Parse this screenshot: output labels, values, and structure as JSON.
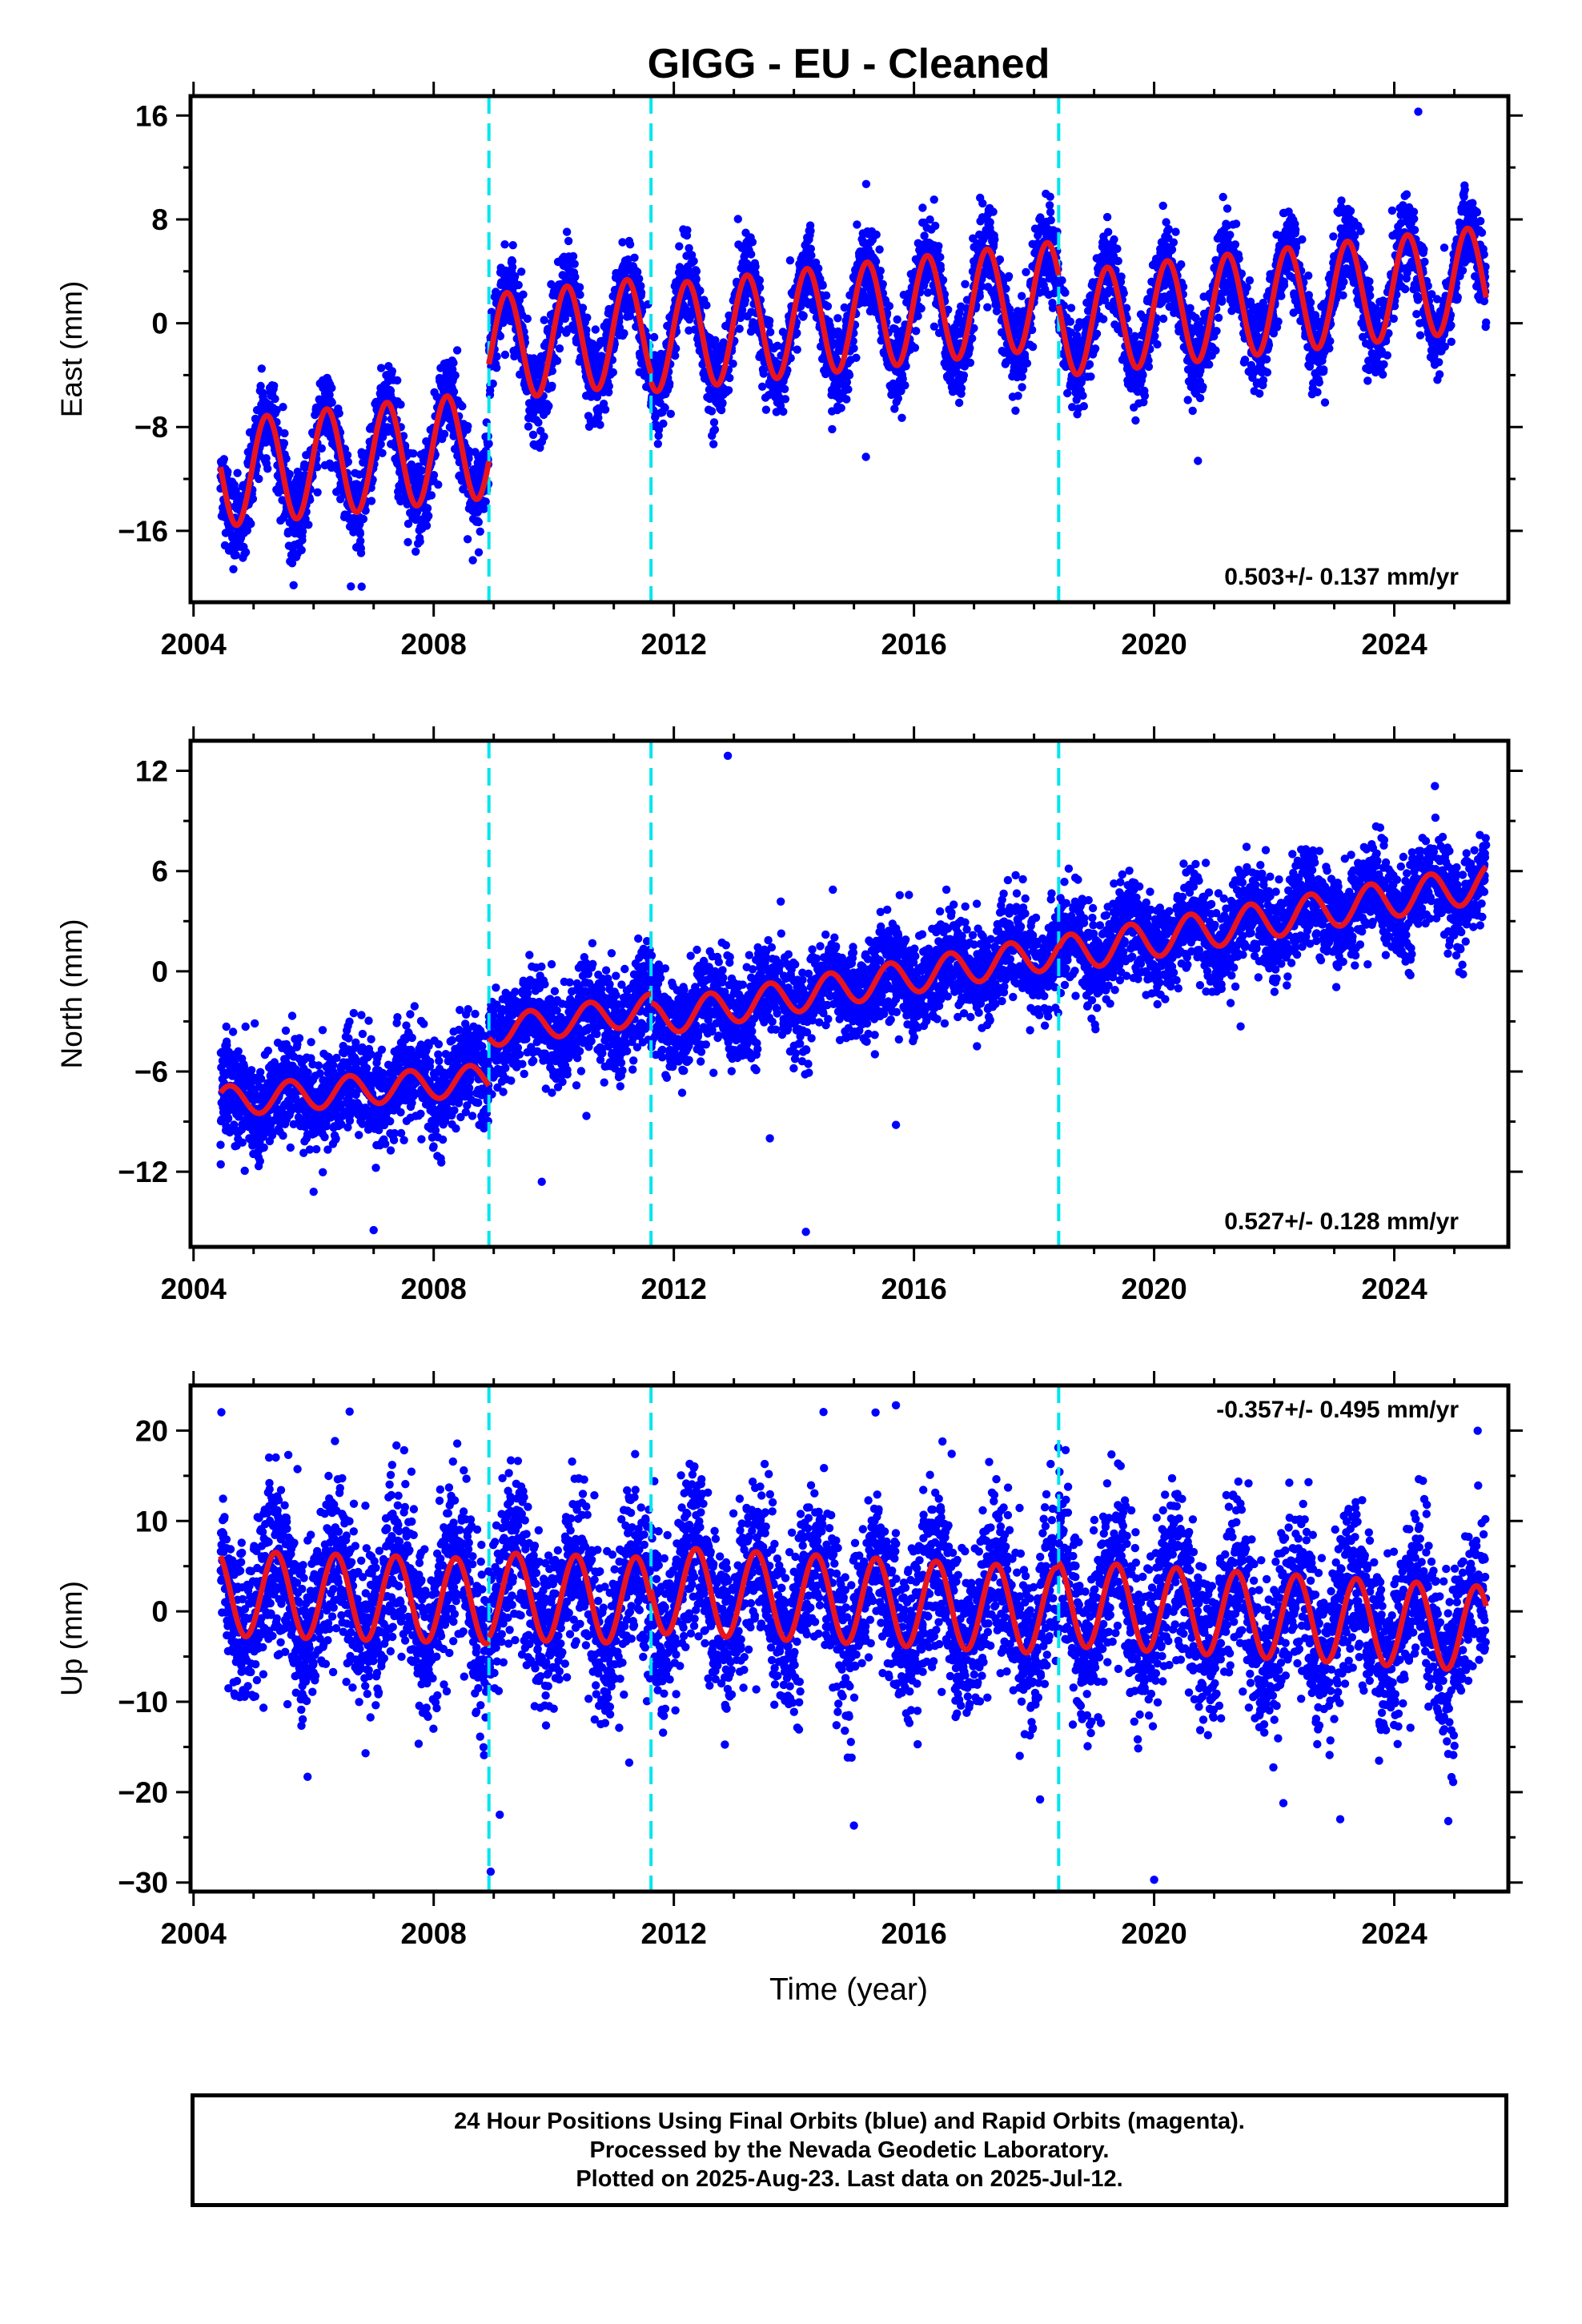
{
  "figure": {
    "title": "GIGG  - EU - Cleaned",
    "x_axis_label": "Time (year)",
    "footer_lines": [
      "24 Hour Positions Using Final Orbits (blue) and Rapid Orbits (magenta).",
      "Processed by the Nevada Geodetic Laboratory.",
      "Plotted on 2025-Aug-23. Last data on 2025-Jul-12."
    ]
  },
  "colors": {
    "points": "#0000ff",
    "model": "#e8141e",
    "breaks": "#00e5ee",
    "frame": "#000000"
  },
  "chart_data": [
    {
      "type": "scatter",
      "name": "east",
      "ylabel": "East (mm)",
      "xlim": [
        2003.95,
        2025.9
      ],
      "ylim": [
        -21.5,
        17.5
      ],
      "x_ticks": [
        2004,
        2008,
        2012,
        2016,
        2020,
        2024
      ],
      "y_ticks": [
        -16,
        -8,
        0,
        8,
        16
      ],
      "rate_label": "0.503+/- 0.137 mm/yr",
      "rate_position": "bottom-right",
      "break_epochs": [
        2008.92,
        2011.62,
        2018.41
      ],
      "model_segments": [
        {
          "x_start": 2004.45,
          "x_end": 2008.92,
          "intercept_mm": -11.6,
          "slope_mm_per_yr": 0.5,
          "annual_amplitude_mm": 4.1,
          "annual_phase_yr": 0.22
        },
        {
          "x_start": 2008.92,
          "x_end": 2011.62,
          "intercept_mm": -1.9,
          "slope_mm_per_yr": 0.5,
          "annual_amplitude_mm": 4.1,
          "annual_phase_yr": 0.22
        },
        {
          "x_start": 2011.62,
          "x_end": 2018.41,
          "intercept_mm": -1.2,
          "slope_mm_per_yr": 0.5,
          "annual_amplitude_mm": 4.1,
          "annual_phase_yr": 0.22
        },
        {
          "x_start": 2018.41,
          "x_end": 2025.53,
          "intercept_mm": -0.1,
          "slope_mm_per_yr": 0.5,
          "annual_amplitude_mm": 4.0,
          "annual_phase_yr": 0.22
        }
      ],
      "scatter_noise_mm": 1.6,
      "outliers": [
        [
          2006.8,
          -20.3
        ],
        [
          2024.4,
          16.3
        ],
        [
          2007.7,
          -17.6
        ],
        [
          2015.2,
          -10.3
        ]
      ]
    },
    {
      "type": "scatter",
      "name": "north",
      "ylabel": "North (mm)",
      "xlim": [
        2003.95,
        2025.9
      ],
      "ylim": [
        -16.5,
        13.8
      ],
      "x_ticks": [
        2004,
        2008,
        2012,
        2016,
        2020,
        2024
      ],
      "y_ticks": [
        -12,
        -6,
        0,
        6,
        12
      ],
      "rate_label": "0.527+/- 0.128 mm/yr",
      "rate_position": "bottom-right",
      "break_epochs": [
        2008.92,
        2011.62,
        2018.41
      ],
      "model_segments": [
        {
          "x_start": 2004.45,
          "x_end": 2008.92,
          "intercept_mm": -7.8,
          "slope_mm_per_yr": 0.3,
          "annual_amplitude_mm": 0.9,
          "annual_phase_yr": 0.6
        },
        {
          "x_start": 2008.92,
          "x_end": 2011.62,
          "intercept_mm": -3.6,
          "slope_mm_per_yr": 0.5,
          "annual_amplitude_mm": 0.9,
          "annual_phase_yr": 0.6
        },
        {
          "x_start": 2011.62,
          "x_end": 2018.41,
          "intercept_mm": -2.9,
          "slope_mm_per_yr": 0.6,
          "annual_amplitude_mm": 1.0,
          "annual_phase_yr": 0.6
        },
        {
          "x_start": 2018.41,
          "x_end": 2025.53,
          "intercept_mm": 1.0,
          "slope_mm_per_yr": 0.6,
          "annual_amplitude_mm": 1.1,
          "annual_phase_yr": 0.6
        }
      ],
      "scatter_noise_mm": 1.4,
      "outliers": [
        [
          2012.9,
          12.9
        ],
        [
          2006.0,
          -13.2
        ],
        [
          2007.0,
          -15.5
        ],
        [
          2014.2,
          -15.6
        ],
        [
          2013.6,
          -10.0
        ],
        [
          2015.7,
          -9.2
        ],
        [
          2009.8,
          -12.6
        ]
      ]
    },
    {
      "type": "scatter",
      "name": "up",
      "ylabel": "Up (mm)",
      "xlim": [
        2003.95,
        2025.9
      ],
      "ylim": [
        -31,
        25
      ],
      "x_ticks": [
        2004,
        2008,
        2012,
        2016,
        2020,
        2024
      ],
      "y_ticks": [
        -30,
        -20,
        -10,
        0,
        10,
        20
      ],
      "rate_label": "-0.357+/- 0.495 mm/yr",
      "rate_position": "top-right",
      "break_epochs": [
        2008.92,
        2011.62,
        2018.41
      ],
      "model_segments": [
        {
          "x_start": 2004.45,
          "x_end": 2008.92,
          "intercept_mm": 2.0,
          "slope_mm_per_yr": -0.2,
          "annual_amplitude_mm": 4.7,
          "annual_phase_yr": 0.37
        },
        {
          "x_start": 2008.92,
          "x_end": 2011.62,
          "intercept_mm": 1.7,
          "slope_mm_per_yr": -0.2,
          "annual_amplitude_mm": 4.8,
          "annual_phase_yr": 0.37
        },
        {
          "x_start": 2011.62,
          "x_end": 2018.41,
          "intercept_mm": 2.4,
          "slope_mm_per_yr": -0.35,
          "annual_amplitude_mm": 4.8,
          "annual_phase_yr": 0.37
        },
        {
          "x_start": 2018.41,
          "x_end": 2025.53,
          "intercept_mm": 0.9,
          "slope_mm_per_yr": -0.4,
          "annual_amplitude_mm": 4.7,
          "annual_phase_yr": 0.37
        }
      ],
      "scatter_noise_mm": 4.5,
      "outliers": [
        [
          2015.7,
          22.8
        ],
        [
          2006.6,
          22.1
        ],
        [
          2008.95,
          -28.8
        ],
        [
          2020.0,
          -29.7
        ],
        [
          2009.1,
          -22.5
        ],
        [
          2015.0,
          -23.7
        ],
        [
          2023.1,
          -23.0
        ],
        [
          2024.9,
          -23.2
        ],
        [
          2005.9,
          -18.3
        ],
        [
          2018.1,
          -20.8
        ]
      ]
    }
  ]
}
